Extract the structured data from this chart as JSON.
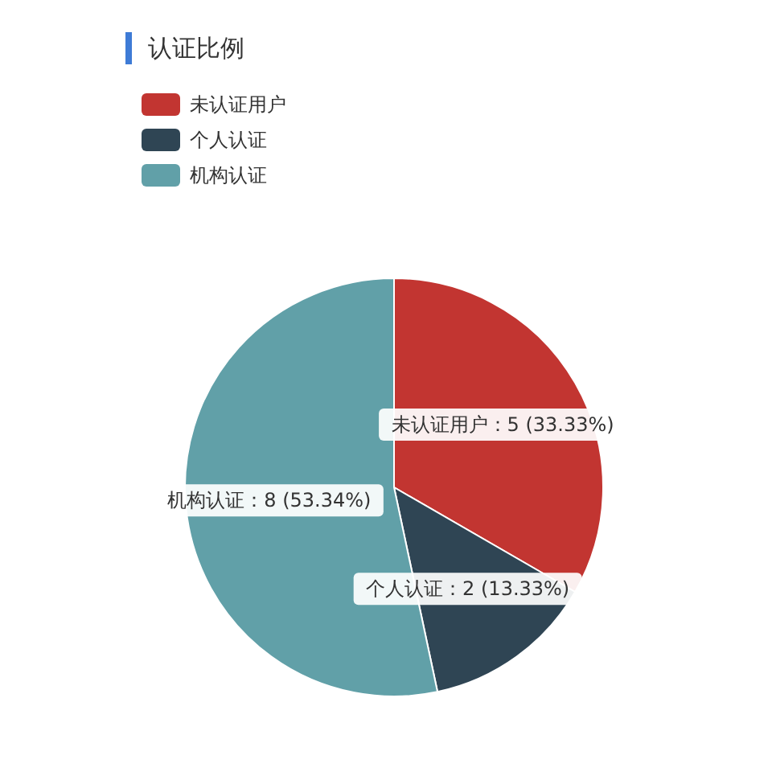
{
  "chart_data": {
    "type": "pie",
    "title": "认证比例",
    "categories": [
      "未认证用户",
      "个人认证",
      "机构认证"
    ],
    "values": [
      5,
      2,
      8
    ],
    "colors": [
      "#c23531",
      "#2f4554",
      "#61a0a8"
    ],
    "value_labels": [
      "未认证用户：5 (33.33%)",
      "个人认证：2 (13.33%)",
      "机构认证：8 (53.34%)"
    ],
    "legend": "top left"
  }
}
